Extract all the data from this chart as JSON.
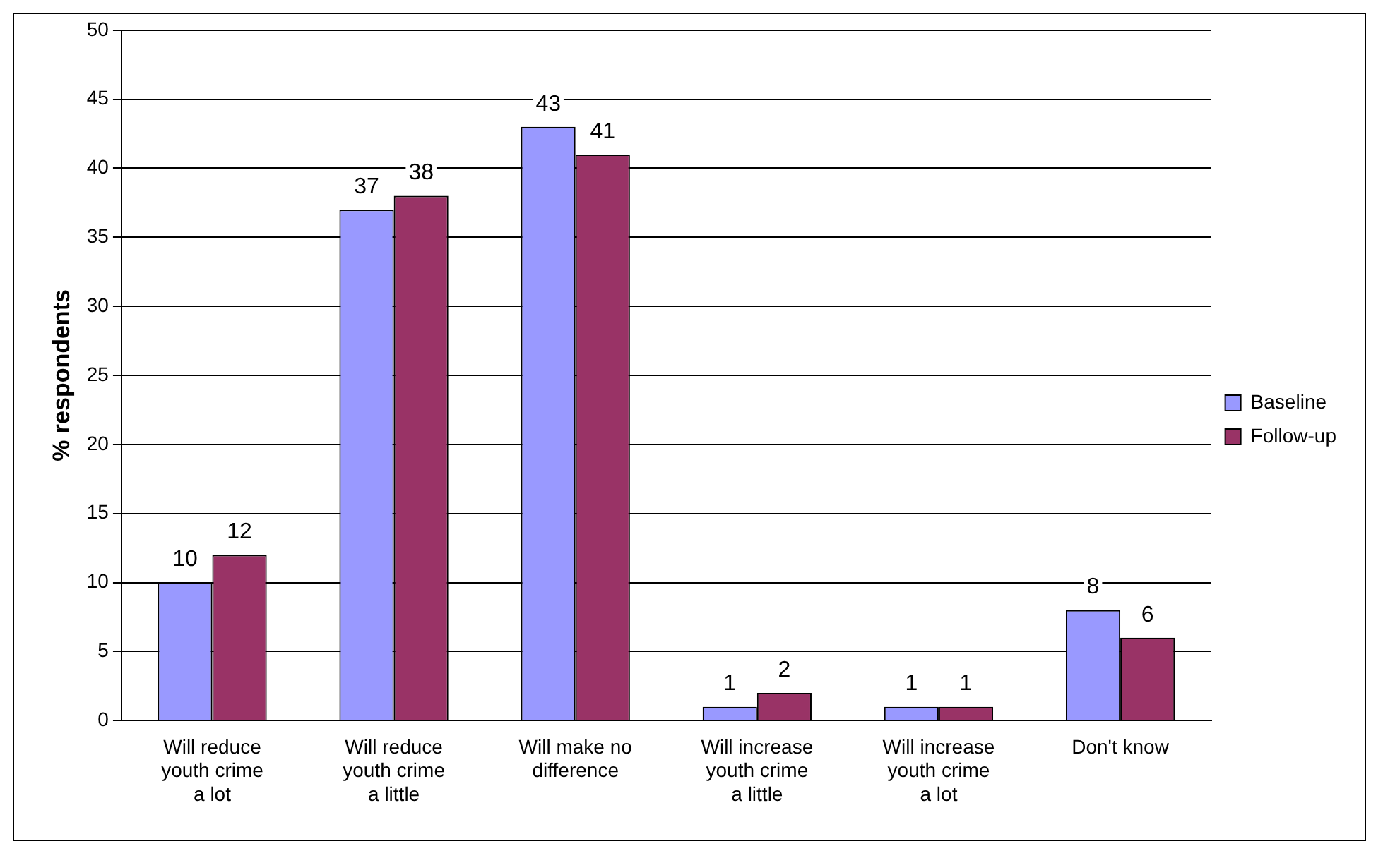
{
  "chart_data": {
    "type": "bar",
    "ylabel": "% respondents",
    "categories": [
      "Will reduce youth crime a lot",
      "Will reduce youth crime a little",
      "Will make no difference",
      "Will increase youth crime a little",
      "Will increase youth crime a lot",
      "Don't know"
    ],
    "series": [
      {
        "name": "Baseline",
        "color": "#9999ff",
        "values": [
          10,
          37,
          43,
          1,
          1,
          8
        ]
      },
      {
        "name": "Follow-up",
        "color": "#993366",
        "values": [
          12,
          38,
          41,
          2,
          1,
          6
        ]
      }
    ],
    "ylim": [
      0,
      50
    ],
    "yticks": [
      0,
      5,
      10,
      15,
      20,
      25,
      30,
      35,
      40,
      45,
      50
    ],
    "grid": "y",
    "legend": "right",
    "data_labels": true
  }
}
